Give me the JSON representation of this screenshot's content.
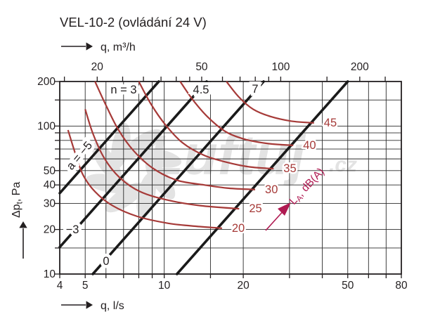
{
  "title": "VEL-10-2 (ovládání 24 V)",
  "colors": {
    "ink": "#231f20",
    "grid": "#2b2b2b",
    "fan_line": "#1a1a1a",
    "noise_red": "#a63a38",
    "la_magenta": "#b01a52",
    "watermark": "#e3e3e3"
  },
  "watermark": {
    "logo": "fan-swirl",
    "text": "Luftuj",
    "suffix": ".cz"
  },
  "chart_data": {
    "type": "line",
    "title": "VEL-10-2 (ovládání 24 V)",
    "scale": "log-log",
    "grid": "on",
    "x_axis_bottom": {
      "label": "q, l/s",
      "range": [
        4,
        80
      ],
      "major_ticks": [
        4,
        5,
        10,
        20,
        50,
        80
      ],
      "tick_values": [
        4,
        5,
        6,
        7,
        8,
        9,
        10,
        15,
        20,
        30,
        40,
        50,
        60,
        70,
        80
      ],
      "gridline_values": [
        5,
        6,
        7,
        8,
        9,
        10,
        15,
        20,
        30,
        40,
        50,
        60,
        70
      ]
    },
    "x_axis_top": {
      "label": "q, m³/h",
      "unit_factor_from_ls": 3.6,
      "major_ticks": [
        20,
        50,
        100,
        200
      ],
      "tick_values": [
        15,
        20,
        25,
        30,
        35,
        40,
        45,
        50,
        60,
        70,
        80,
        90,
        100,
        150,
        200,
        250
      ]
    },
    "y_axis": {
      "label_main": "Δp",
      "label_sub": "t",
      "label_rest": ", Pa",
      "range": [
        10,
        200
      ],
      "major_ticks": [
        10,
        20,
        30,
        40,
        50,
        100,
        200
      ],
      "tick_values": [
        10,
        15,
        20,
        30,
        40,
        50,
        60,
        70,
        80,
        90,
        100,
        150,
        200
      ],
      "gridline_values": [
        15,
        20,
        30,
        40,
        50,
        60,
        70,
        80,
        90,
        100,
        150
      ]
    },
    "fan_setting_lines": [
      {
        "label_low": "a = −5",
        "label_top": "n = 3",
        "k_pa_per_ls2": 2.2,
        "p_from": 35.2,
        "p_to": 200
      },
      {
        "label_low": "−3",
        "label_top": "4.5",
        "k_pa_per_ls2": 0.95,
        "p_from": 15.2,
        "p_to": 200
      },
      {
        "label_low": "0",
        "label_top": "7",
        "k_pa_per_ls2": 0.35,
        "p_from": 10,
        "p_to": 200
      },
      {
        "label_low": "",
        "label_top": "",
        "k_pa_per_ls2": 0.08,
        "p_from": 10,
        "p_to": 200
      }
    ],
    "noise_curves": [
      {
        "label": "20",
        "points": [
          [
            4.3,
            94
          ],
          [
            4.55,
            68
          ],
          [
            4.9,
            47
          ],
          [
            5.45,
            36
          ],
          [
            6.35,
            29
          ],
          [
            7.9,
            24.5
          ],
          [
            10.4,
            22
          ],
          [
            13.3,
            21
          ],
          [
            16.6,
            20.4
          ]
        ]
      },
      {
        "label": "25",
        "points": [
          [
            5.0,
            130
          ],
          [
            5.35,
            89
          ],
          [
            5.9,
            61
          ],
          [
            6.75,
            45
          ],
          [
            8.1,
            36
          ],
          [
            10.4,
            31.5
          ],
          [
            13.7,
            29
          ],
          [
            19.3,
            27.6
          ]
        ]
      },
      {
        "label": "30",
        "points": [
          [
            5.45,
            200
          ],
          [
            6.0,
            138
          ],
          [
            6.7,
            94
          ],
          [
            7.65,
            68
          ],
          [
            9.1,
            51.5
          ],
          [
            11.2,
            43
          ],
          [
            14.2,
            40
          ],
          [
            17.6,
            38
          ],
          [
            22.2,
            37.2
          ]
        ]
      },
      {
        "label": "35",
        "points": [
          [
            8.0,
            200
          ],
          [
            8.9,
            141
          ],
          [
            10.1,
            102
          ],
          [
            11.75,
            77
          ],
          [
            14.15,
            63.5
          ],
          [
            17.25,
            57
          ],
          [
            21.1,
            53
          ],
          [
            26.1,
            51.5
          ]
        ]
      },
      {
        "label": "40",
        "points": [
          [
            11.5,
            200
          ],
          [
            12.9,
            149
          ],
          [
            14.8,
            113
          ],
          [
            17.25,
            91
          ],
          [
            20.5,
            81
          ],
          [
            25.1,
            76
          ],
          [
            31.0,
            74
          ]
        ]
      },
      {
        "label": "45",
        "points": [
          [
            17.25,
            200
          ],
          [
            19.25,
            157
          ],
          [
            21.8,
            130
          ],
          [
            25.4,
            116
          ],
          [
            30.5,
            108
          ],
          [
            37.2,
            105
          ]
        ]
      }
    ],
    "noise_annotation": {
      "main": "L",
      "sub": "A",
      "rest": ", dB(A)"
    }
  }
}
